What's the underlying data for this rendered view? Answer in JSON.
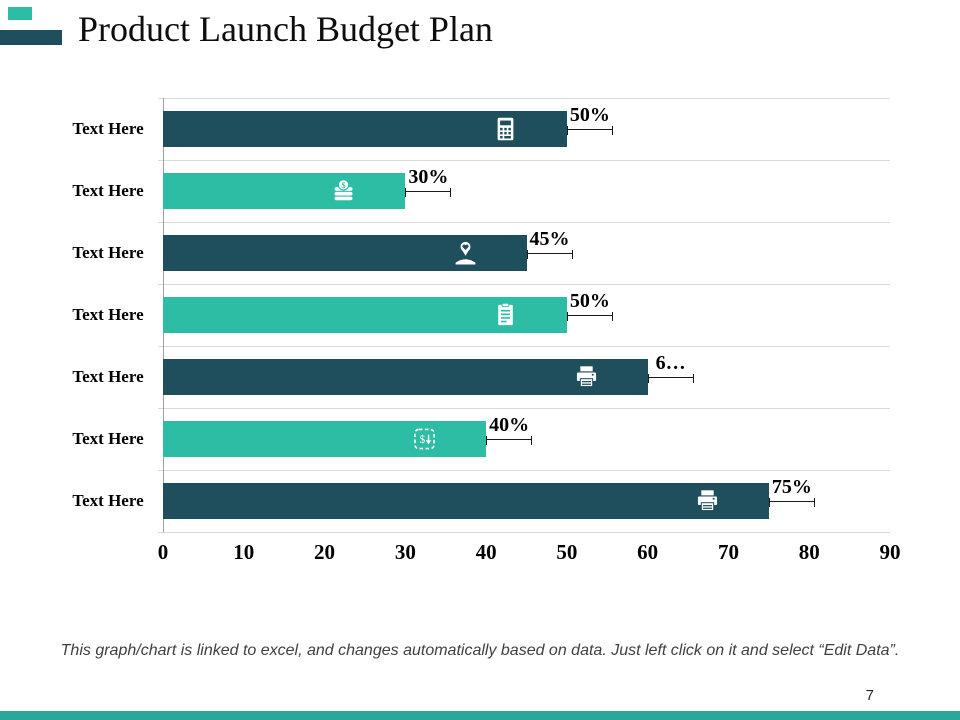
{
  "slide": {
    "title": "Product Launch Budget Plan",
    "page_number": "7",
    "footnote": "This graph/chart is linked to excel, and changes automatically based on data. Just left click on it and select “Edit Data”."
  },
  "colors": {
    "dark_teal": "#1f4e5c",
    "light_teal": "#2cbda4",
    "bottom_bar": "#2aa79b",
    "gridline": "#d9d9d9"
  },
  "chart_data": {
    "type": "bar",
    "orientation": "horizontal",
    "title": "Product Launch Budget Plan",
    "categories": [
      "Text Here",
      "Text Here",
      "Text Here",
      "Text Here",
      "Text Here",
      "Text Here",
      "Text Here"
    ],
    "values": [
      50,
      30,
      45,
      50,
      60,
      40,
      75
    ],
    "value_labels": [
      "50%",
      "30%",
      "45%",
      "50%",
      "6…",
      "40%",
      "75%"
    ],
    "icons": [
      "calculator-icon",
      "money-stack-icon",
      "care-hands-icon",
      "clipboard-icon",
      "printer-icon",
      "money-exchange-icon",
      "printer-icon"
    ],
    "bar_colors": [
      "#1f4e5c",
      "#2cbda4",
      "#1f4e5c",
      "#2cbda4",
      "#1f4e5c",
      "#2cbda4",
      "#1f4e5c"
    ],
    "xlim": [
      0,
      90
    ],
    "x_ticks": [
      "0",
      "10",
      "20",
      "30",
      "40",
      "50",
      "60",
      "70",
      "80",
      "90"
    ],
    "grid": "horizontal row separator lines",
    "legend": "none"
  }
}
